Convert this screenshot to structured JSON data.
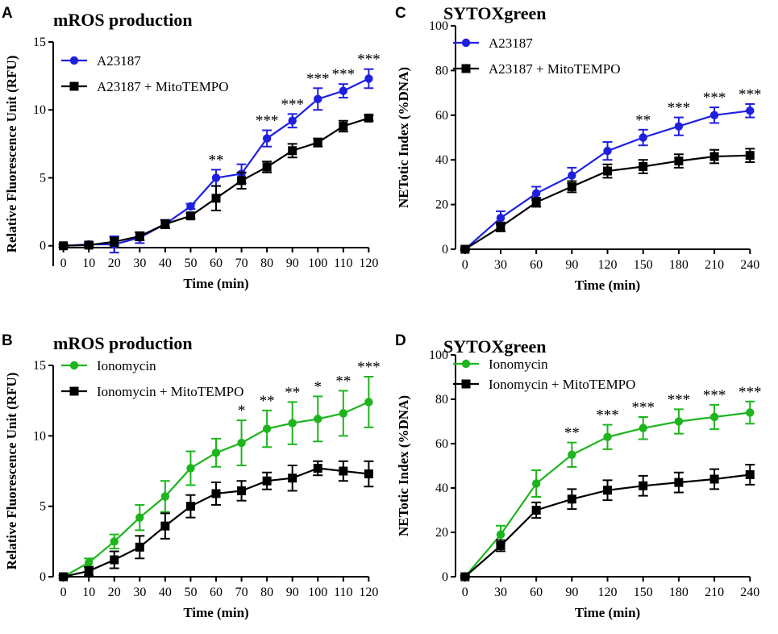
{
  "colors": {
    "blue": "#1f1fe0",
    "green": "#1db51d",
    "black": "#000000"
  },
  "chart_data": [
    {
      "panel": "A",
      "type": "line",
      "title": "mROS production",
      "xlabel": "Time (min)",
      "ylabel": "Relative Fluorescence Unit (RFU)",
      "x": [
        0,
        10,
        20,
        30,
        40,
        50,
        60,
        70,
        80,
        90,
        100,
        110,
        120
      ],
      "xlim": [
        -4,
        124
      ],
      "xticks": [
        "0",
        "10",
        "20",
        "30",
        "40",
        "50",
        "60",
        "70",
        "80",
        "90",
        "100",
        "110",
        "120"
      ],
      "ylim": [
        -1.5,
        15
      ],
      "yticks": [
        "0",
        "5",
        "10",
        "15"
      ],
      "series": [
        {
          "name": "A23187",
          "color": "#1f1fe0",
          "marker": "circle",
          "values": [
            0,
            0.1,
            0.1,
            0.6,
            1.6,
            2.9,
            5.0,
            5.3,
            7.9,
            9.2,
            10.8,
            11.4,
            12.3
          ],
          "errors": [
            0.1,
            0.2,
            0.6,
            0.4,
            0.3,
            0.2,
            0.6,
            0.7,
            0.6,
            0.5,
            0.8,
            0.5,
            0.7
          ]
        },
        {
          "name": "A23187 + MitoTEMPO",
          "color": "#000000",
          "marker": "square",
          "values": [
            0,
            0.05,
            0.3,
            0.7,
            1.6,
            2.2,
            3.5,
            4.8,
            5.8,
            7.0,
            7.6,
            8.8,
            9.4
          ],
          "errors": [
            0.1,
            0.1,
            0.3,
            0.3,
            0.3,
            0.2,
            0.9,
            0.6,
            0.4,
            0.5,
            0.3,
            0.4,
            0.2
          ]
        }
      ],
      "significance": [
        {
          "x": 60,
          "label": "**"
        },
        {
          "x": 80,
          "label": "***"
        },
        {
          "x": 90,
          "label": "***"
        },
        {
          "x": 100,
          "label": "***"
        },
        {
          "x": 110,
          "label": "***"
        },
        {
          "x": 120,
          "label": "***"
        }
      ],
      "legend": "top-left"
    },
    {
      "panel": "B",
      "type": "line",
      "title": "mROS production",
      "xlabel": "Time (min)",
      "ylabel": "Relative Fluorescence Unit (RFU)",
      "x": [
        0,
        10,
        20,
        30,
        40,
        50,
        60,
        70,
        80,
        90,
        100,
        110,
        120
      ],
      "xlim": [
        -4,
        124
      ],
      "xticks": [
        "0",
        "10",
        "20",
        "30",
        "40",
        "50",
        "60",
        "70",
        "80",
        "90",
        "100",
        "110",
        "120"
      ],
      "ylim": [
        0,
        15
      ],
      "yticks": [
        "0",
        "5",
        "10",
        "15"
      ],
      "series": [
        {
          "name": "Ionomycin",
          "color": "#1db51d",
          "marker": "circle",
          "values": [
            0,
            1.0,
            2.5,
            4.2,
            5.7,
            7.7,
            8.8,
            9.5,
            10.5,
            10.9,
            11.2,
            11.6,
            12.4
          ],
          "errors": [
            0.1,
            0.3,
            0.5,
            0.9,
            1.1,
            1.2,
            1.0,
            1.6,
            1.3,
            1.5,
            1.6,
            1.6,
            1.8
          ]
        },
        {
          "name": "Ionomycin + MitoTEMPO",
          "color": "#000000",
          "marker": "square",
          "values": [
            0,
            0.4,
            1.2,
            2.1,
            3.6,
            5.0,
            5.9,
            6.1,
            6.8,
            7.0,
            7.7,
            7.5,
            7.3
          ],
          "errors": [
            0.1,
            0.3,
            0.6,
            0.8,
            0.9,
            0.8,
            0.8,
            0.7,
            0.6,
            0.9,
            0.5,
            0.7,
            0.9
          ]
        }
      ],
      "significance": [
        {
          "x": 70,
          "label": "*"
        },
        {
          "x": 80,
          "label": "**"
        },
        {
          "x": 90,
          "label": "**"
        },
        {
          "x": 100,
          "label": "*"
        },
        {
          "x": 110,
          "label": "**"
        },
        {
          "x": 120,
          "label": "***"
        }
      ],
      "legend": "top-left"
    },
    {
      "panel": "C",
      "type": "line",
      "title": "SYTOXgreen",
      "xlabel": "Time (min)",
      "ylabel": "NETotic Index (%DNA)",
      "x": [
        0,
        30,
        60,
        90,
        120,
        150,
        180,
        210,
        240
      ],
      "xlim": [
        -8,
        250
      ],
      "xticks": [
        "0",
        "30",
        "60",
        "90",
        "120",
        "150",
        "180",
        "210",
        "240"
      ],
      "ylim": [
        0,
        100
      ],
      "yticks": [
        "0",
        "20",
        "40",
        "60",
        "80",
        "100"
      ],
      "series": [
        {
          "name": "A23187",
          "color": "#1f1fe0",
          "marker": "circle",
          "values": [
            0,
            14,
            25,
            33,
            44,
            50,
            55,
            60,
            62
          ],
          "errors": [
            0.5,
            3,
            3,
            3.5,
            4,
            3.5,
            4,
            3.5,
            3
          ]
        },
        {
          "name": "A23187 + MitoTEMPO",
          "color": "#000000",
          "marker": "square",
          "values": [
            0,
            10,
            21,
            28,
            35,
            37,
            39.5,
            41.5,
            42
          ],
          "errors": [
            0.5,
            2,
            2,
            2.5,
            3,
            3,
            3,
            3,
            3
          ]
        }
      ],
      "significance": [
        {
          "x": 150,
          "label": "**"
        },
        {
          "x": 180,
          "label": "***"
        },
        {
          "x": 210,
          "label": "***"
        },
        {
          "x": 240,
          "label": "***"
        }
      ],
      "legend": "top-left"
    },
    {
      "panel": "D",
      "type": "line",
      "title": "SYTOXgreen",
      "xlabel": "Time (min)",
      "ylabel": "NETotic Index (%DNA)",
      "x": [
        0,
        30,
        60,
        90,
        120,
        150,
        180,
        210,
        240
      ],
      "xlim": [
        -8,
        250
      ],
      "xticks": [
        "0",
        "30",
        "60",
        "90",
        "120",
        "150",
        "180",
        "210",
        "240"
      ],
      "ylim": [
        0,
        100
      ],
      "yticks": [
        "0",
        "20",
        "40",
        "60",
        "80",
        "100"
      ],
      "series": [
        {
          "name": "Ionomycin",
          "color": "#1db51d",
          "marker": "circle",
          "values": [
            0,
            19,
            42,
            55,
            63,
            67,
            70,
            72,
            74
          ],
          "errors": [
            0.5,
            4,
            6,
            5.5,
            5.5,
            5,
            5.5,
            5.5,
            5
          ]
        },
        {
          "name": "Ionomycin + MitoTEMPO",
          "color": "#000000",
          "marker": "square",
          "values": [
            0,
            14,
            30,
            35,
            39,
            41,
            42.5,
            44,
            46
          ],
          "errors": [
            0.5,
            2.5,
            3.5,
            4.5,
            4.5,
            4.5,
            4.5,
            4.5,
            4.5
          ]
        }
      ],
      "significance": [
        {
          "x": 90,
          "label": "**"
        },
        {
          "x": 120,
          "label": "***"
        },
        {
          "x": 150,
          "label": "***"
        },
        {
          "x": 180,
          "label": "***"
        },
        {
          "x": 210,
          "label": "***"
        },
        {
          "x": 240,
          "label": "***"
        }
      ],
      "legend": "top-left"
    }
  ]
}
